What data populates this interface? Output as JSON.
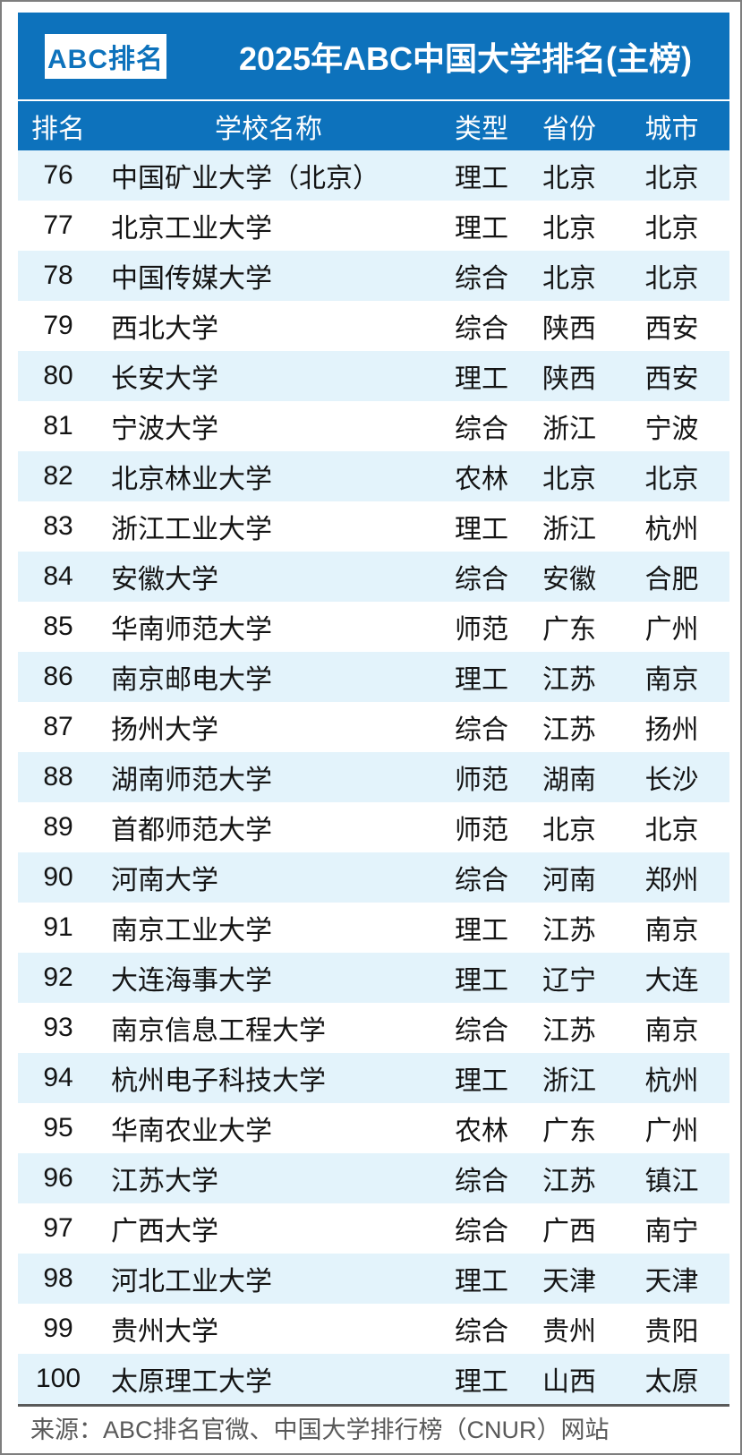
{
  "header": {
    "logo_text": "ABC排名",
    "title": "2025年ABC中国大学排名(主榜)",
    "brand_blue": "#0d72bc",
    "alt_row_color": "#e3f3fb"
  },
  "table": {
    "columns": [
      "排名",
      "学校名称",
      "类型",
      "省份",
      "城市"
    ],
    "rows": [
      {
        "rank": "76",
        "school": "中国矿业大学（北京）",
        "type": "理工",
        "province": "北京",
        "city": "北京"
      },
      {
        "rank": "77",
        "school": "北京工业大学",
        "type": "理工",
        "province": "北京",
        "city": "北京"
      },
      {
        "rank": "78",
        "school": "中国传媒大学",
        "type": "综合",
        "province": "北京",
        "city": "北京"
      },
      {
        "rank": "79",
        "school": "西北大学",
        "type": "综合",
        "province": "陕西",
        "city": "西安"
      },
      {
        "rank": "80",
        "school": "长安大学",
        "type": "理工",
        "province": "陕西",
        "city": "西安"
      },
      {
        "rank": "81",
        "school": "宁波大学",
        "type": "综合",
        "province": "浙江",
        "city": "宁波"
      },
      {
        "rank": "82",
        "school": "北京林业大学",
        "type": "农林",
        "province": "北京",
        "city": "北京"
      },
      {
        "rank": "83",
        "school": "浙江工业大学",
        "type": "理工",
        "province": "浙江",
        "city": "杭州"
      },
      {
        "rank": "84",
        "school": "安徽大学",
        "type": "综合",
        "province": "安徽",
        "city": "合肥"
      },
      {
        "rank": "85",
        "school": "华南师范大学",
        "type": "师范",
        "province": "广东",
        "city": "广州"
      },
      {
        "rank": "86",
        "school": "南京邮电大学",
        "type": "理工",
        "province": "江苏",
        "city": "南京"
      },
      {
        "rank": "87",
        "school": "扬州大学",
        "type": "综合",
        "province": "江苏",
        "city": "扬州"
      },
      {
        "rank": "88",
        "school": "湖南师范大学",
        "type": "师范",
        "province": "湖南",
        "city": "长沙"
      },
      {
        "rank": "89",
        "school": "首都师范大学",
        "type": "师范",
        "province": "北京",
        "city": "北京"
      },
      {
        "rank": "90",
        "school": "河南大学",
        "type": "综合",
        "province": "河南",
        "city": "郑州"
      },
      {
        "rank": "91",
        "school": "南京工业大学",
        "type": "理工",
        "province": "江苏",
        "city": "南京"
      },
      {
        "rank": "92",
        "school": "大连海事大学",
        "type": "理工",
        "province": "辽宁",
        "city": "大连"
      },
      {
        "rank": "93",
        "school": "南京信息工程大学",
        "type": "综合",
        "province": "江苏",
        "city": "南京"
      },
      {
        "rank": "94",
        "school": "杭州电子科技大学",
        "type": "理工",
        "province": "浙江",
        "city": "杭州"
      },
      {
        "rank": "95",
        "school": "华南农业大学",
        "type": "农林",
        "province": "广东",
        "city": "广州"
      },
      {
        "rank": "96",
        "school": "江苏大学",
        "type": "综合",
        "province": "江苏",
        "city": "镇江"
      },
      {
        "rank": "97",
        "school": "广西大学",
        "type": "综合",
        "province": "广西",
        "city": "南宁"
      },
      {
        "rank": "98",
        "school": "河北工业大学",
        "type": "理工",
        "province": "天津",
        "city": "天津"
      },
      {
        "rank": "99",
        "school": "贵州大学",
        "type": "综合",
        "province": "贵州",
        "city": "贵阳"
      },
      {
        "rank": "100",
        "school": "太原理工大学",
        "type": "理工",
        "province": "山西",
        "city": "太原"
      }
    ]
  },
  "footer": {
    "source": "来源：ABC排名官微、中国大学排行榜（CNUR）网站"
  }
}
